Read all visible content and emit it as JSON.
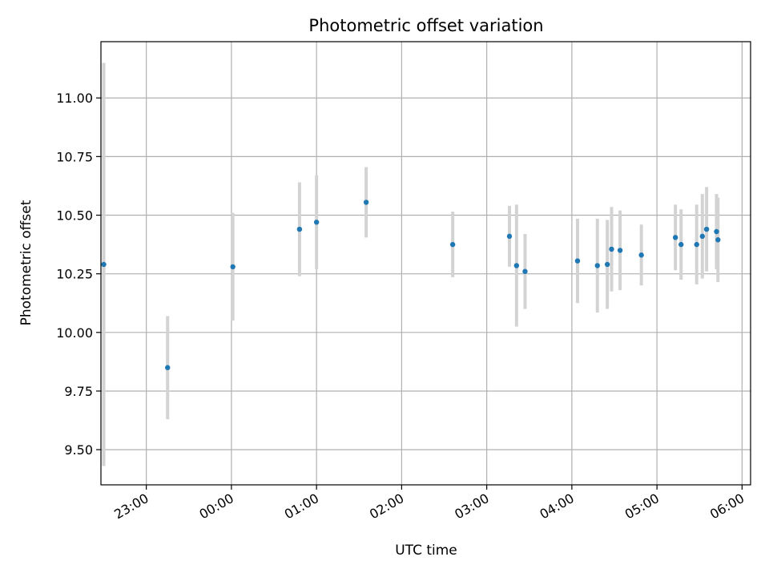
{
  "chart_data": {
    "type": "scatter",
    "title": "Photometric offset variation",
    "xlabel": "UTC time",
    "ylabel": "Photometric offset",
    "grid": true,
    "legend": "none",
    "x_is_time": true,
    "xlim": [
      "22:28",
      "06:06"
    ],
    "ylim": [
      9.35,
      11.24
    ],
    "x_ticks": [
      "23:00",
      "00:00",
      "01:00",
      "02:00",
      "03:00",
      "04:00",
      "05:00",
      "06:00"
    ],
    "y_ticks": [
      "9.50",
      "9.75",
      "10.00",
      "10.25",
      "10.50",
      "10.75",
      "11.00"
    ],
    "colors": {
      "points": "#1f77b4",
      "errorbars": "#d3d3d3",
      "grid": "#b0b0b0"
    },
    "series": [
      {
        "points": [
          {
            "x": "22:30",
            "y": 10.29,
            "err": 0.86
          },
          {
            "x": "23:15",
            "y": 9.85,
            "err": 0.22
          },
          {
            "x": "00:01",
            "y": 10.28,
            "err": 0.23
          },
          {
            "x": "00:48",
            "y": 10.44,
            "err": 0.2
          },
          {
            "x": "01:00",
            "y": 10.47,
            "err": 0.2
          },
          {
            "x": "01:35",
            "y": 10.555,
            "err": 0.15
          },
          {
            "x": "02:36",
            "y": 10.375,
            "err": 0.14
          },
          {
            "x": "03:16",
            "y": 10.41,
            "err": 0.13
          },
          {
            "x": "03:21",
            "y": 10.285,
            "err": 0.26
          },
          {
            "x": "03:27",
            "y": 10.26,
            "err": 0.16
          },
          {
            "x": "04:04",
            "y": 10.305,
            "err": 0.18
          },
          {
            "x": "04:18",
            "y": 10.285,
            "err": 0.2
          },
          {
            "x": "04:25",
            "y": 10.29,
            "err": 0.19
          },
          {
            "x": "04:28",
            "y": 10.355,
            "err": 0.18
          },
          {
            "x": "04:34",
            "y": 10.35,
            "err": 0.17
          },
          {
            "x": "04:49",
            "y": 10.33,
            "err": 0.13
          },
          {
            "x": "05:13",
            "y": 10.405,
            "err": 0.14
          },
          {
            "x": "05:17",
            "y": 10.375,
            "err": 0.15
          },
          {
            "x": "05:28",
            "y": 10.375,
            "err": 0.17
          },
          {
            "x": "05:32",
            "y": 10.41,
            "err": 0.18
          },
          {
            "x": "05:35",
            "y": 10.44,
            "err": 0.18
          },
          {
            "x": "05:42",
            "y": 10.43,
            "err": 0.16
          },
          {
            "x": "05:43",
            "y": 10.395,
            "err": 0.18
          }
        ]
      }
    ]
  }
}
